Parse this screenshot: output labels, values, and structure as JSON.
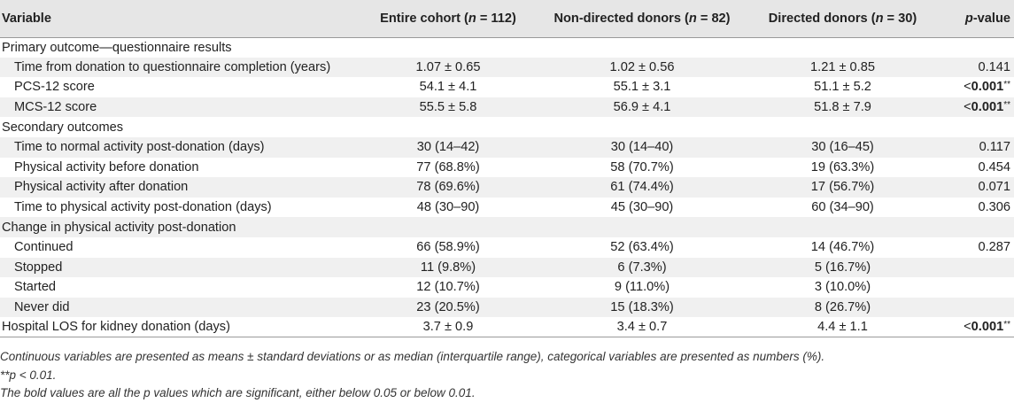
{
  "table": {
    "headers": {
      "variable": "Variable",
      "entire_prefix": "Entire cohort (",
      "entire_n": "n",
      "entire_suffix": " = 112)",
      "nondirected_prefix": "Non-directed donors (",
      "nondirected_n": "n",
      "nondirected_suffix": " = 82)",
      "directed_prefix": "Directed donors (",
      "directed_n": "n",
      "directed_suffix": " = 30)",
      "pvalue_p": "p",
      "pvalue_suffix": "-value"
    },
    "rows": [
      {
        "label": "Primary outcome—questionnaire results",
        "entire": "",
        "nondirected": "",
        "directed": "",
        "p_prefix": "",
        "p_bold": "",
        "p_plain": "",
        "p_stars": ""
      },
      {
        "label": "Time from donation to questionnaire completion (years)",
        "entire": "1.07 ± 0.65",
        "nondirected": "1.02 ± 0.56",
        "directed": "1.21 ± 0.85",
        "p_prefix": "",
        "p_bold": "",
        "p_plain": "0.141",
        "p_stars": ""
      },
      {
        "label": "PCS-12 score",
        "entire": "54.1 ± 4.1",
        "nondirected": "55.1 ± 3.1",
        "directed": "51.1 ± 5.2",
        "p_prefix": "<",
        "p_bold": "0.001",
        "p_plain": "",
        "p_stars": "**"
      },
      {
        "label": "MCS-12 score",
        "entire": "55.5 ± 5.8",
        "nondirected": "56.9 ± 4.1",
        "directed": "51.8 ± 7.9",
        "p_prefix": "<",
        "p_bold": "0.001",
        "p_plain": "",
        "p_stars": "**"
      },
      {
        "label": "Secondary outcomes",
        "entire": "",
        "nondirected": "",
        "directed": "",
        "p_prefix": "",
        "p_bold": "",
        "p_plain": "",
        "p_stars": ""
      },
      {
        "label": "Time to normal activity post-donation (days)",
        "entire": "30 (14–42)",
        "nondirected": "30 (14–40)",
        "directed": "30 (16–45)",
        "p_prefix": "",
        "p_bold": "",
        "p_plain": "0.117",
        "p_stars": ""
      },
      {
        "label": "Physical activity before donation",
        "entire": "77 (68.8%)",
        "nondirected": "58 (70.7%)",
        "directed": "19 (63.3%)",
        "p_prefix": "",
        "p_bold": "",
        "p_plain": "0.454",
        "p_stars": ""
      },
      {
        "label": "Physical activity after donation",
        "entire": "78 (69.6%)",
        "nondirected": "61 (74.4%)",
        "directed": "17 (56.7%)",
        "p_prefix": "",
        "p_bold": "",
        "p_plain": "0.071",
        "p_stars": ""
      },
      {
        "label": "Time to physical activity post-donation (days)",
        "entire": "48 (30–90)",
        "nondirected": "45 (30–90)",
        "directed": "60 (34–90)",
        "p_prefix": "",
        "p_bold": "",
        "p_plain": "0.306",
        "p_stars": ""
      },
      {
        "label": "Change in physical activity post-donation",
        "entire": "",
        "nondirected": "",
        "directed": "",
        "p_prefix": "",
        "p_bold": "",
        "p_plain": "",
        "p_stars": ""
      },
      {
        "label": "Continued",
        "entire": "66 (58.9%)",
        "nondirected": "52 (63.4%)",
        "directed": "14 (46.7%)",
        "p_prefix": "",
        "p_bold": "",
        "p_plain": "0.287",
        "p_stars": ""
      },
      {
        "label": "Stopped",
        "entire": "11 (9.8%)",
        "nondirected": "6 (7.3%)",
        "directed": "5 (16.7%)",
        "p_prefix": "",
        "p_bold": "",
        "p_plain": "",
        "p_stars": ""
      },
      {
        "label": "Started",
        "entire": "12 (10.7%)",
        "nondirected": "9 (11.0%)",
        "directed": "3 (10.0%)",
        "p_prefix": "",
        "p_bold": "",
        "p_plain": "",
        "p_stars": ""
      },
      {
        "label": "Never did",
        "entire": "23 (20.5%)",
        "nondirected": "15 (18.3%)",
        "directed": "8 (26.7%)",
        "p_prefix": "",
        "p_bold": "",
        "p_plain": "",
        "p_stars": ""
      },
      {
        "label": "Hospital LOS for kidney donation (days)",
        "entire": "3.7 ± 0.9",
        "nondirected": "3.4 ± 0.7",
        "directed": "4.4 ± 1.1",
        "p_prefix": "<",
        "p_bold": "0.001",
        "p_plain": "",
        "p_stars": "**"
      }
    ]
  },
  "footnotes": {
    "line1": "Continuous variables are presented as means ± standard deviations or as median (interquartile range), categorical variables are presented as numbers (%).",
    "line2_stars": "**",
    "line2_text": "p < 0.01.",
    "line3": "The bold values are all the p values which are significant, either below 0.05 or below 0.01."
  },
  "colors": {
    "header_bg": "#e6e6e6",
    "stripe_bg": "#f0f0f0",
    "rule": "#9a9a9a",
    "text": "#222222"
  }
}
